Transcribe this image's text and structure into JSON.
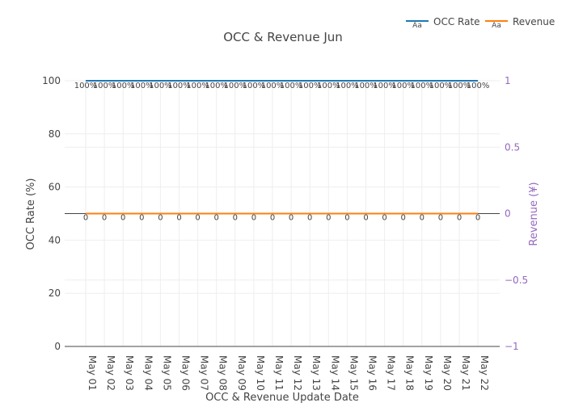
{
  "chart_data": {
    "type": "line",
    "title": "OCC & Revenue Jun",
    "xlabel": "OCC & Revenue Update Date",
    "ylabel": "OCC Rate (%)",
    "y2label": "Revenue (¥)",
    "categories": [
      "May 01",
      "May 02",
      "May 03",
      "May 04",
      "May 05",
      "May 06",
      "May 07",
      "May 08",
      "May 09",
      "May 10",
      "May 11",
      "May 12",
      "May 13",
      "May 14",
      "May 15",
      "May 16",
      "May 17",
      "May 18",
      "May 19",
      "May 20",
      "May 21",
      "May 22"
    ],
    "ylim": [
      0,
      100
    ],
    "y2lim": [
      -1,
      1
    ],
    "yticks": [
      0,
      20,
      40,
      60,
      80,
      100
    ],
    "y2ticks": [
      {
        "v": -1,
        "label": "−1"
      },
      {
        "v": -0.5,
        "label": "−0.5"
      },
      {
        "v": 0,
        "label": "0"
      },
      {
        "v": 0.5,
        "label": "0.5"
      },
      {
        "v": 1,
        "label": "1"
      }
    ],
    "grid": true,
    "legend_position": "top-right",
    "legend_symbol_text": "Aa",
    "series": [
      {
        "name": "OCC Rate",
        "axis": "y",
        "color": "#1f77b4",
        "values": [
          100,
          100,
          100,
          100,
          100,
          100,
          100,
          100,
          100,
          100,
          100,
          100,
          100,
          100,
          100,
          100,
          100,
          100,
          100,
          100,
          100,
          100
        ],
        "label_suffix": "%"
      },
      {
        "name": "Revenue",
        "axis": "y2",
        "color": "#ff7f0e",
        "values": [
          0,
          0,
          0,
          0,
          0,
          0,
          0,
          0,
          0,
          0,
          0,
          0,
          0,
          0,
          0,
          0,
          0,
          0,
          0,
          0,
          0,
          0
        ],
        "label_suffix": ""
      }
    ],
    "y2_color": "#9467bd"
  }
}
